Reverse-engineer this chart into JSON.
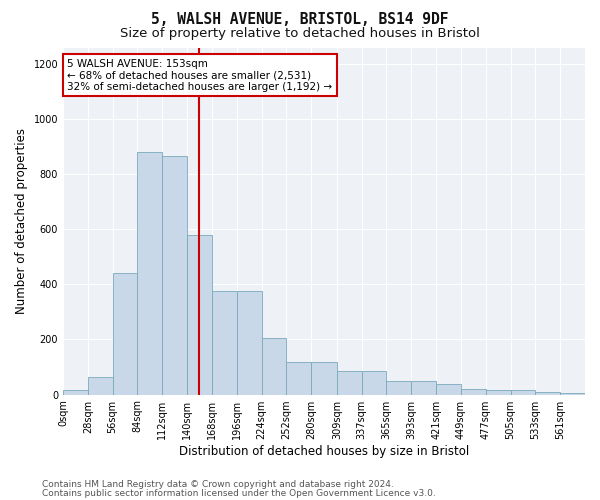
{
  "title_line1": "5, WALSH AVENUE, BRISTOL, BS14 9DF",
  "title_line2": "Size of property relative to detached houses in Bristol",
  "xlabel": "Distribution of detached houses by size in Bristol",
  "ylabel": "Number of detached properties",
  "bar_values": [
    15,
    65,
    440,
    880,
    865,
    580,
    375,
    375,
    205,
    120,
    120,
    85,
    85,
    50,
    50,
    40,
    22,
    15,
    15,
    10,
    5
  ],
  "bin_edges": [
    0,
    28,
    56,
    84,
    112,
    140,
    168,
    196,
    224,
    252,
    280,
    309,
    337,
    365,
    393,
    421,
    449,
    477,
    505,
    533,
    561,
    589
  ],
  "bar_color": "#c8d8e8",
  "bar_edge_color": "#7aaabb",
  "vline_x": 153,
  "vline_color": "#cc0000",
  "annotation_text": "5 WALSH AVENUE: 153sqm\n← 68% of detached houses are smaller (2,531)\n32% of semi-detached houses are larger (1,192) →",
  "annotation_box_color": "#ffffff",
  "annotation_box_edge": "#cc0000",
  "ylim": [
    0,
    1260
  ],
  "yticks": [
    0,
    200,
    400,
    600,
    800,
    1000,
    1200
  ],
  "tick_labels": [
    "0sqm",
    "28sqm",
    "56sqm",
    "84sqm",
    "112sqm",
    "140sqm",
    "168sqm",
    "196sqm",
    "224sqm",
    "252sqm",
    "280sqm",
    "309sqm",
    "337sqm",
    "365sqm",
    "393sqm",
    "421sqm",
    "449sqm",
    "477sqm",
    "505sqm",
    "533sqm",
    "561sqm"
  ],
  "footer_line1": "Contains HM Land Registry data © Crown copyright and database right 2024.",
  "footer_line2": "Contains public sector information licensed under the Open Government Licence v3.0.",
  "bg_color": "#ffffff",
  "plot_bg_color": "#eef2f7",
  "grid_color": "#ffffff",
  "title_fontsize": 10.5,
  "subtitle_fontsize": 9.5,
  "axis_label_fontsize": 8.5,
  "tick_fontsize": 7,
  "footer_fontsize": 6.5,
  "annotation_fontsize": 7.5
}
